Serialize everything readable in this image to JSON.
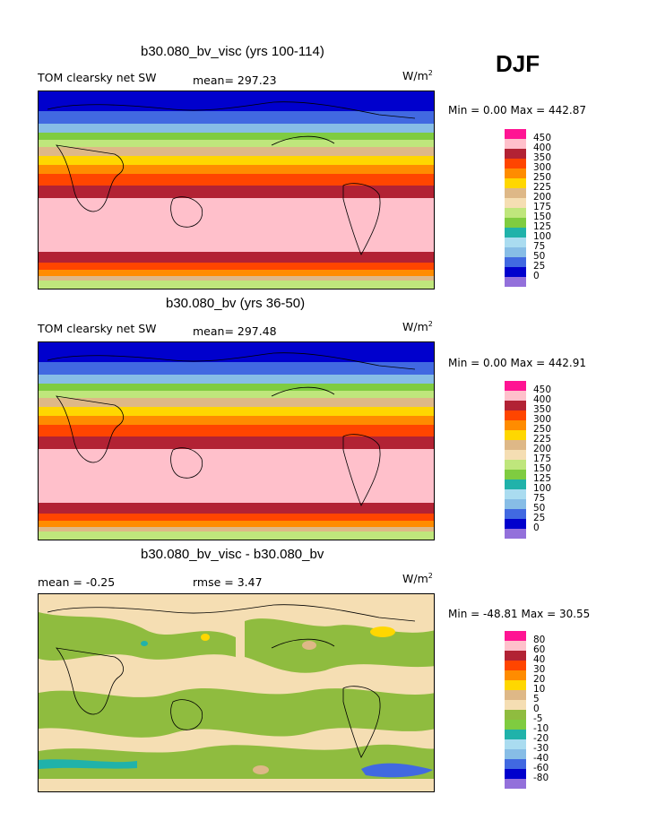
{
  "season": "DJF",
  "panels": [
    {
      "title": "b30.080_bv_visc (yrs 100-114)",
      "field_label": "TOM clearsky net SW",
      "stat": "mean= 297.23",
      "units": "W/m",
      "units_exp": "2",
      "min_max": "Min =    0.00 Max = 442.87",
      "map_type": "absolute"
    },
    {
      "title": "b30.080_bv (yrs 36-50)",
      "field_label": "TOM clearsky net SW",
      "stat": "mean= 297.48",
      "units": "W/m",
      "units_exp": "2",
      "min_max": "Min =    0.00 Max = 442.91",
      "map_type": "absolute"
    },
    {
      "title": "b30.080_bv_visc - b30.080_bv",
      "field_label": "mean =   -0.25",
      "stat": "rmse =    3.47",
      "units": "W/m",
      "units_exp": "2",
      "min_max": "Min = -48.81 Max =  30.55",
      "map_type": "difference"
    }
  ],
  "legend_abs": {
    "labels": [
      "450",
      "400",
      "350",
      "300",
      "250",
      "225",
      "200",
      "175",
      "150",
      "125",
      "100",
      "75",
      "50",
      "25",
      "0"
    ],
    "colors": [
      "#ff1493",
      "#ffc0cb",
      "#b22234",
      "#ff4500",
      "#ff8c00",
      "#ffd700",
      "#deb887",
      "#f5deb3",
      "#bfe67c",
      "#7fcc40",
      "#20b2aa",
      "#aadcf0",
      "#87bde6",
      "#4169e1",
      "#0000cd",
      "#9370db"
    ]
  },
  "legend_diff": {
    "labels": [
      "80",
      "60",
      "40",
      "30",
      "20",
      "10",
      "5",
      "0",
      "-5",
      "-10",
      "-20",
      "-30",
      "-40",
      "-60",
      "-80"
    ],
    "colors": [
      "#ff1493",
      "#ffc0cb",
      "#b22234",
      "#ff4500",
      "#ff8c00",
      "#ffd700",
      "#deb887",
      "#f5deb3",
      "#8fbc3f",
      "#7fcc40",
      "#20b2aa",
      "#aadcf0",
      "#87bde6",
      "#4169e1",
      "#0000cd",
      "#9370db"
    ]
  }
}
